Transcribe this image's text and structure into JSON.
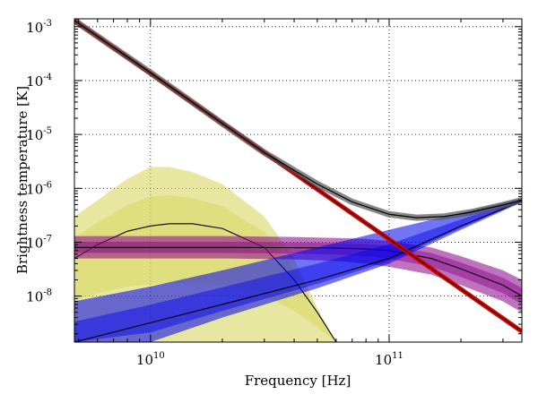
{
  "chart_data": {
    "type": "line",
    "title": "",
    "xlabel": "Frequency [Hz]",
    "ylabel": "Brightness temperature [K]",
    "xscale": "log",
    "yscale": "log",
    "xlim": [
      4800000000.0,
      360000000000.0
    ],
    "ylim": [
      1.4e-09,
      0.0014
    ],
    "grid": true,
    "legend": "none",
    "xticks": [
      {
        "value": 10000000000.0,
        "base": "10",
        "exp": "10"
      },
      {
        "value": 100000000000.0,
        "base": "10",
        "exp": "11"
      }
    ],
    "yticks": [
      {
        "value": 0.001,
        "base": "10",
        "exp": "-3"
      },
      {
        "value": 0.0001,
        "base": "10",
        "exp": "-4"
      },
      {
        "value": 1e-05,
        "base": "10",
        "exp": "-5"
      },
      {
        "value": 1e-06,
        "base": "10",
        "exp": "-6"
      },
      {
        "value": 1e-07,
        "base": "10",
        "exp": "-7"
      },
      {
        "value": 1e-08,
        "base": "10",
        "exp": "-8"
      }
    ],
    "series": [
      {
        "color": "#d4d455",
        "style": "band",
        "x": [
          4800000000.0,
          6000000000.0,
          8000000000.0,
          10000000000.0,
          12000000000.0,
          15000000000.0,
          20000000000.0,
          30000000000.0,
          40000000000.0,
          50000000000.0,
          60000000000.0
        ],
        "y_low": [
          1.4e-09,
          1.4e-09,
          1.4e-09,
          1.4e-09,
          1.4e-09,
          1.4e-09,
          1.4e-09,
          1.4e-09,
          1.4e-09,
          1.4e-09,
          1.4e-09
        ],
        "y_high": [
          3e-07,
          6e-07,
          1.5e-06,
          2.5e-06,
          2.5e-06,
          2e-06,
          1.2e-06,
          3e-07,
          5e-08,
          6e-09,
          1.4e-09
        ],
        "y_center": [
          5e-08,
          9e-08,
          1.6e-07,
          2e-07,
          2.2e-07,
          2.2e-07,
          1.8e-07,
          8e-08,
          2e-08,
          5e-09,
          1.4e-09
        ]
      },
      {
        "color": "#880088",
        "style": "band",
        "x": [
          4800000000.0,
          10000000000.0,
          20000000000.0,
          40000000000.0,
          60000000000.0,
          80000000000.0,
          100000000000.0,
          150000000000.0,
          200000000000.0,
          300000000000.0,
          360000000000.0
        ],
        "y_low": [
          5e-08,
          5e-08,
          5e-08,
          4.8e-08,
          4.5e-08,
          4e-08,
          3.5e-08,
          2.5e-08,
          1.6e-08,
          8e-09,
          5e-09
        ],
        "y_high": [
          1.3e-07,
          1.3e-07,
          1.3e-07,
          1.25e-07,
          1.2e-07,
          1.15e-07,
          1.05e-07,
          8e-08,
          5.5e-08,
          3e-08,
          2e-08
        ],
        "y_center": [
          8e-08,
          8e-08,
          8e-08,
          7.9e-08,
          7.8e-08,
          7.5e-08,
          7e-08,
          5e-08,
          3.2e-08,
          1.6e-08,
          1e-08
        ]
      },
      {
        "color": "#0000ee",
        "style": "band",
        "x": [
          4800000000.0,
          10000000000.0,
          20000000000.0,
          50000000000.0,
          100000000000.0,
          200000000000.0,
          360000000000.0
        ],
        "y_low": [
          1.4e-09,
          1.4e-09,
          4e-09,
          1.4e-08,
          4e-08,
          1.7e-07,
          5.5e-07
        ],
        "y_high": [
          8e-09,
          1.5e-08,
          3e-08,
          8e-08,
          1.7e-07,
          3.5e-07,
          6.5e-07
        ],
        "y_center": [
          1.4e-09,
          3.2e-09,
          7e-09,
          2e-08,
          5e-08,
          2e-07,
          5.8e-07
        ]
      },
      {
        "color": "#dd0000",
        "style": "line",
        "x": [
          4800000000.0,
          360000000000.0
        ],
        "y": [
          0.0013,
          2.2e-09
        ]
      },
      {
        "color": "#222222",
        "style": "total",
        "x": [
          4800000000.0,
          10000000000.0,
          20000000000.0,
          30000000000.0,
          50000000000.0,
          70000000000.0,
          100000000000.0,
          130000000000.0,
          170000000000.0,
          220000000000.0,
          300000000000.0,
          360000000000.0
        ],
        "y": [
          0.0013,
          0.00014,
          1.6e-05,
          4.6e-06,
          1.2e-06,
          5.6e-07,
          3.3e-07,
          2.85e-07,
          3e-07,
          3.6e-07,
          4.9e-07,
          6e-07
        ]
      }
    ]
  }
}
